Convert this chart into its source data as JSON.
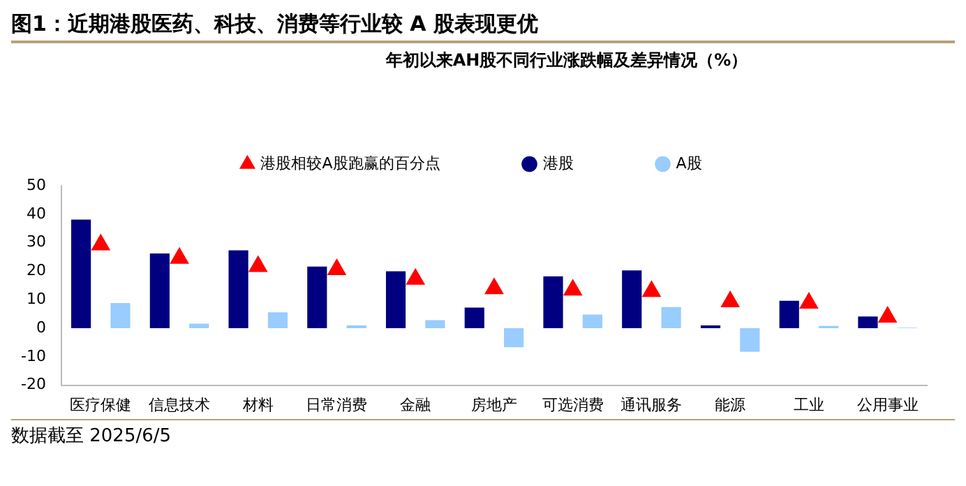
{
  "chart_data": {
    "type": "bar",
    "title": "图1：近期港股医药、科技、消费等行业较 A 股表现更优",
    "subtitle": "年初以来AH股不同行业涨跌幅及差异情况（%）",
    "categories": [
      "医疗保健",
      "信息技术",
      "材料",
      "日常消费",
      "金融",
      "房地产",
      "可选消费",
      "通讯服务",
      "能源",
      "工业",
      "公用事业"
    ],
    "series": [
      {
        "name": "港股",
        "color": "#000080",
        "values": [
          38.1,
          26.2,
          27.3,
          21.6,
          20.0,
          7.2,
          18.2,
          20.3,
          1.0,
          9.6,
          4.1
        ]
      },
      {
        "name": "A股",
        "color": "#99ccff",
        "values": [
          8.8,
          1.6,
          5.6,
          1.0,
          2.8,
          -6.7,
          4.8,
          7.4,
          -8.3,
          0.8,
          0.2
        ]
      },
      {
        "name": "港股相较A股跑赢的百分点",
        "type": "scatter",
        "color": "#ff0000",
        "marker": "triangle",
        "x": [
          "医疗保健",
          "信息技术",
          "材料",
          "日常消费",
          "金融",
          "房地产",
          "可选消费",
          "通讯服务",
          "能源",
          "工业",
          "公用事业"
        ],
        "values": [
          29.3,
          24.6,
          21.7,
          20.6,
          17.2,
          13.9,
          13.4,
          12.9,
          9.3,
          8.8,
          3.9
        ]
      }
    ],
    "ylim": [
      -20,
      50
    ],
    "yticks": [
      -20,
      -10,
      0,
      10,
      20,
      30,
      40,
      50
    ],
    "grid": false,
    "legend": "top",
    "annotations": [
      "数据截至 2025/6/5"
    ]
  }
}
